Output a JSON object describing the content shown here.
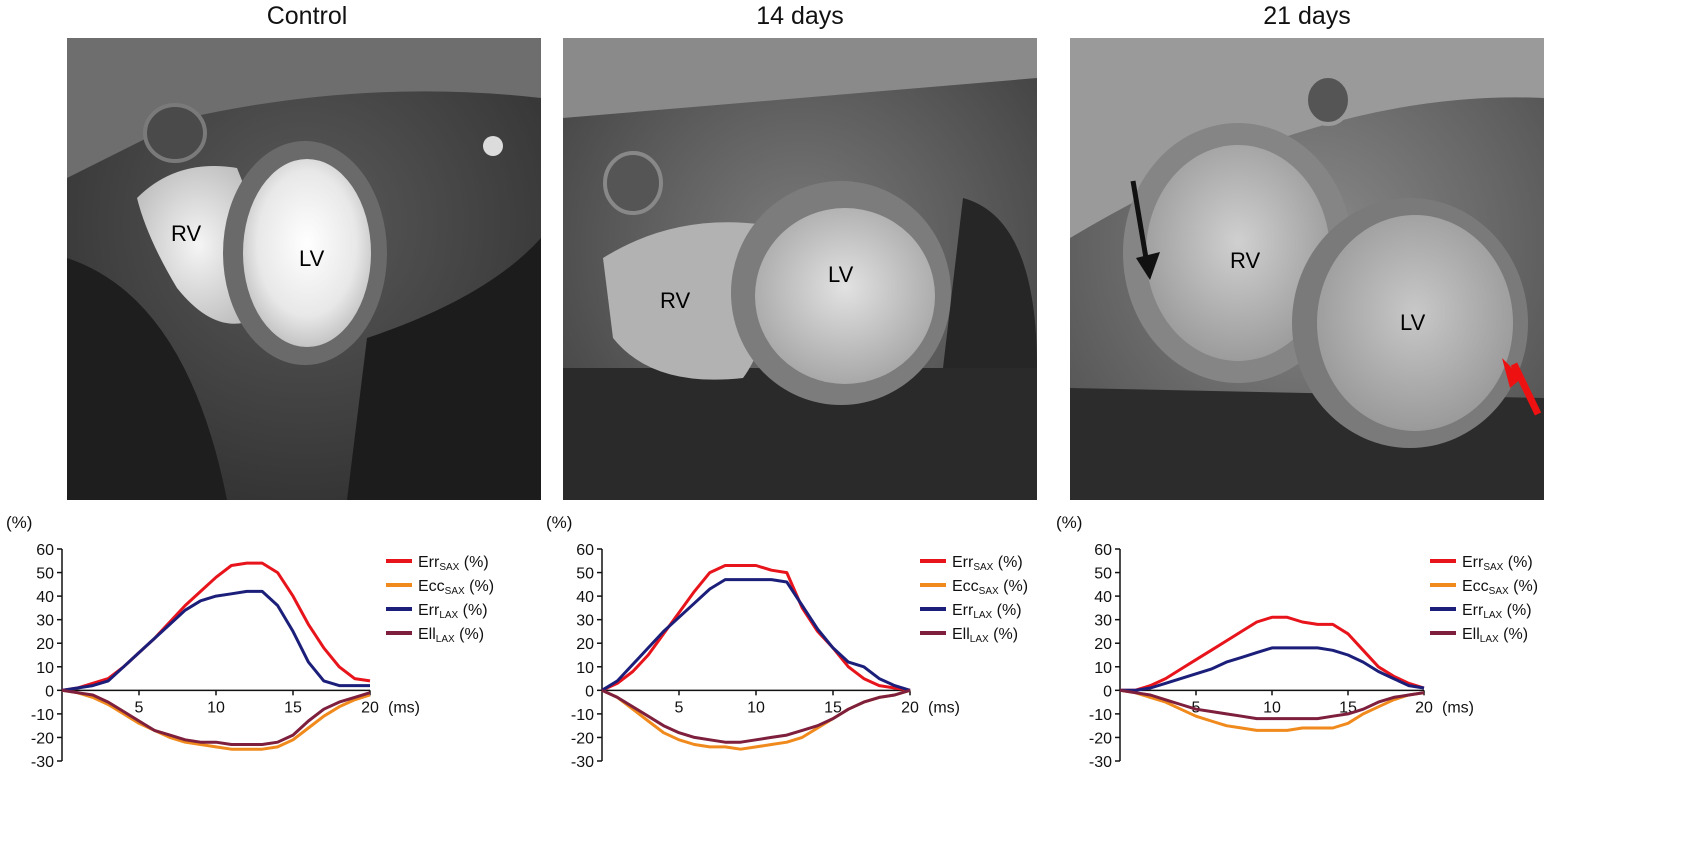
{
  "panels": [
    {
      "title": "Control",
      "labels": {
        "rv": "RV",
        "lv": "LV"
      }
    },
    {
      "title": "14 days",
      "labels": {
        "rv": "RV",
        "lv": "LV"
      }
    },
    {
      "title": "21 days",
      "labels": {
        "rv": "RV",
        "lv": "LV"
      }
    }
  ],
  "arrow_colors": {
    "black": "#111111",
    "red": "#ee1111"
  },
  "chart_data": [
    {
      "type": "line",
      "title": "",
      "xlabel": "(ms)",
      "ylabel": "(%)",
      "xlim": [
        0,
        20
      ],
      "ylim": [
        -30,
        60
      ],
      "x_ticks": [
        5,
        10,
        15,
        20
      ],
      "y_ticks": [
        60,
        50,
        40,
        30,
        20,
        10,
        0,
        -10,
        -20,
        -30
      ],
      "x": [
        0,
        1,
        2,
        3,
        4,
        5,
        6,
        7,
        8,
        9,
        10,
        11,
        12,
        13,
        14,
        15,
        16,
        17,
        18,
        19,
        20
      ],
      "series": [
        {
          "name": "Err",
          "sub": "SAX",
          "suffix": " (%)",
          "color": "#e8141c",
          "values": [
            0,
            1,
            3,
            5,
            10,
            16,
            22,
            29,
            36,
            42,
            48,
            53,
            54,
            54,
            50,
            40,
            28,
            18,
            10,
            5,
            4
          ]
        },
        {
          "name": "Ecc",
          "sub": "SAX",
          "suffix": " (%)",
          "color": "#f08a1c",
          "values": [
            0,
            -1,
            -3,
            -6,
            -10,
            -14,
            -17,
            -20,
            -22,
            -23,
            -24,
            -25,
            -25,
            -25,
            -24,
            -21,
            -16,
            -11,
            -7,
            -4,
            -2
          ]
        },
        {
          "name": "Err",
          "sub": "LAX",
          "suffix": " (%)",
          "color": "#1c1f7a",
          "values": [
            0,
            1,
            2,
            4,
            10,
            16,
            22,
            28,
            34,
            38,
            40,
            41,
            42,
            42,
            36,
            25,
            12,
            4,
            2,
            2,
            2
          ]
        },
        {
          "name": "Ell",
          "sub": "LAX",
          "suffix": " (%)",
          "color": "#7d1f3d",
          "values": [
            0,
            -1,
            -2,
            -5,
            -9,
            -13,
            -17,
            -19,
            -21,
            -22,
            -22,
            -23,
            -23,
            -23,
            -22,
            -19,
            -13,
            -8,
            -5,
            -3,
            -1
          ]
        }
      ]
    },
    {
      "type": "line",
      "title": "",
      "xlabel": "(ms)",
      "ylabel": "(%)",
      "xlim": [
        0,
        20
      ],
      "ylim": [
        -30,
        60
      ],
      "x_ticks": [
        5,
        10,
        15,
        20
      ],
      "y_ticks": [
        60,
        50,
        40,
        30,
        20,
        10,
        0,
        -10,
        -20,
        -30
      ],
      "x": [
        0,
        1,
        2,
        3,
        4,
        5,
        6,
        7,
        8,
        9,
        10,
        11,
        12,
        13,
        14,
        15,
        16,
        17,
        18,
        19,
        20
      ],
      "series": [
        {
          "name": "Err",
          "sub": "SAX",
          "suffix": " (%)",
          "color": "#e8141c",
          "values": [
            0,
            3,
            8,
            15,
            24,
            33,
            42,
            50,
            53,
            53,
            53,
            51,
            50,
            35,
            25,
            18,
            10,
            5,
            2,
            1,
            0
          ]
        },
        {
          "name": "Ecc",
          "sub": "SAX",
          "suffix": " (%)",
          "color": "#f08a1c",
          "values": [
            0,
            -3,
            -8,
            -13,
            -18,
            -21,
            -23,
            -24,
            -24,
            -25,
            -24,
            -23,
            -22,
            -20,
            -16,
            -12,
            -8,
            -5,
            -3,
            -2,
            0
          ]
        },
        {
          "name": "Err",
          "sub": "LAX",
          "suffix": " (%)",
          "color": "#1c1f7a",
          "values": [
            0,
            4,
            11,
            18,
            25,
            31,
            37,
            43,
            47,
            47,
            47,
            47,
            46,
            36,
            26,
            18,
            12,
            10,
            5,
            2,
            0
          ]
        },
        {
          "name": "Ell",
          "sub": "LAX",
          "suffix": " (%)",
          "color": "#7d1f3d",
          "values": [
            0,
            -3,
            -7,
            -11,
            -15,
            -18,
            -20,
            -21,
            -22,
            -22,
            -21,
            -20,
            -19,
            -17,
            -15,
            -12,
            -8,
            -5,
            -3,
            -2,
            0
          ]
        }
      ]
    },
    {
      "type": "line",
      "title": "",
      "xlabel": "(ms)",
      "ylabel": "(%)",
      "xlim": [
        0,
        20
      ],
      "ylim": [
        -30,
        60
      ],
      "x_ticks": [
        5,
        10,
        15,
        20
      ],
      "y_ticks": [
        60,
        50,
        40,
        30,
        20,
        10,
        0,
        -10,
        -20,
        -30
      ],
      "x": [
        0,
        1,
        2,
        3,
        4,
        5,
        6,
        7,
        8,
        9,
        10,
        11,
        12,
        13,
        14,
        15,
        16,
        17,
        18,
        19,
        20
      ],
      "series": [
        {
          "name": "Err",
          "sub": "SAX",
          "suffix": " (%)",
          "color": "#e8141c",
          "values": [
            0,
            0,
            2,
            5,
            9,
            13,
            17,
            21,
            25,
            29,
            31,
            31,
            29,
            28,
            28,
            24,
            17,
            10,
            6,
            3,
            1
          ]
        },
        {
          "name": "Ecc",
          "sub": "SAX",
          "suffix": " (%)",
          "color": "#f08a1c",
          "values": [
            0,
            -1,
            -3,
            -5,
            -8,
            -11,
            -13,
            -15,
            -16,
            -17,
            -17,
            -17,
            -16,
            -16,
            -16,
            -14,
            -10,
            -7,
            -4,
            -2,
            -1
          ]
        },
        {
          "name": "Err",
          "sub": "LAX",
          "suffix": " (%)",
          "color": "#1c1f7a",
          "values": [
            0,
            0,
            1,
            3,
            5,
            7,
            9,
            12,
            14,
            16,
            18,
            18,
            18,
            18,
            17,
            15,
            12,
            8,
            5,
            2,
            1
          ]
        },
        {
          "name": "Ell",
          "sub": "LAX",
          "suffix": " (%)",
          "color": "#7d1f3d",
          "values": [
            0,
            -1,
            -2,
            -4,
            -6,
            -8,
            -9,
            -10,
            -11,
            -12,
            -12,
            -12,
            -12,
            -12,
            -11,
            -10,
            -8,
            -5,
            -3,
            -2,
            -1
          ]
        }
      ]
    }
  ]
}
